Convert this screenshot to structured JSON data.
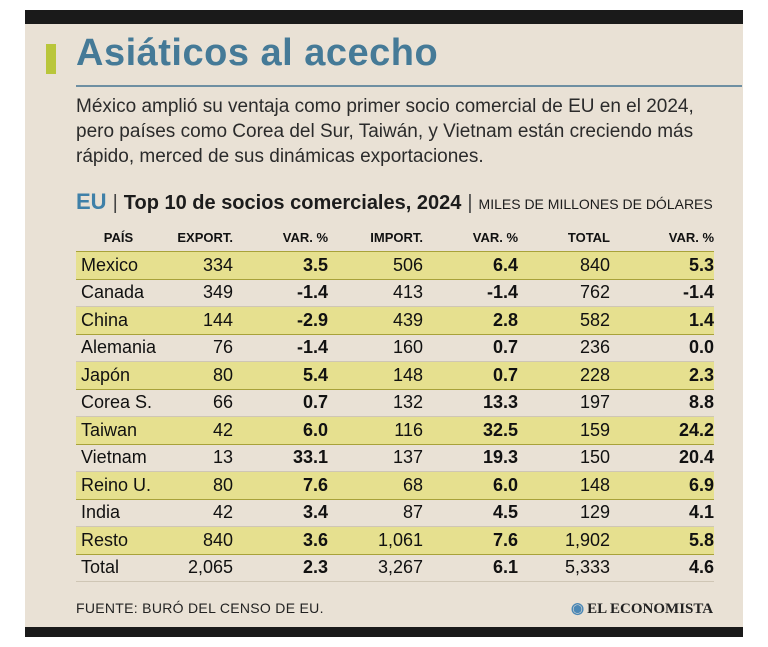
{
  "title": "Asiáticos al acecho",
  "description": "México amplió su ventaja como primer socio comercial de EU en el 2024, pero países como Corea del Sur, Taiwán, y Vietnam están creciendo más rápido, merced de sus dinámicas exportaciones.",
  "subheading": {
    "region": "EU",
    "separator": "|",
    "title": "Top 10 de socios comerciales, 2024",
    "units": "MILES DE MILLONES DE DÓLARES"
  },
  "table": {
    "headers": [
      "PAÍS",
      "EXPORT.",
      "VAR. %",
      "IMPORT.",
      "VAR. %",
      "TOTAL",
      "VAR. %"
    ],
    "rows": [
      [
        "Mexico",
        "334",
        "3.5",
        "506",
        "6.4",
        "840",
        "5.3"
      ],
      [
        "Canada",
        "349",
        "-1.4",
        "413",
        "-1.4",
        "762",
        "-1.4"
      ],
      [
        "China",
        "144",
        "-2.9",
        "439",
        "2.8",
        "582",
        "1.4"
      ],
      [
        "Alemania",
        "76",
        "-1.4",
        "160",
        "0.7",
        "236",
        "0.0"
      ],
      [
        "Japón",
        "80",
        "5.4",
        "148",
        "0.7",
        "228",
        "2.3"
      ],
      [
        "Corea S.",
        "66",
        "0.7",
        "132",
        "13.3",
        "197",
        "8.8"
      ],
      [
        "Taiwan",
        "42",
        "6.0",
        "116",
        "32.5",
        "159",
        "24.2"
      ],
      [
        "Vietnam",
        "13",
        "33.1",
        "137",
        "19.3",
        "150",
        "20.4"
      ],
      [
        "Reino U.",
        "80",
        "7.6",
        "68",
        "6.0",
        "148",
        "6.9"
      ],
      [
        "India",
        "42",
        "3.4",
        "87",
        "4.5",
        "129",
        "4.1"
      ],
      [
        "Resto",
        "840",
        "3.6",
        "1,061",
        "7.6",
        "1,902",
        "5.8"
      ],
      [
        "Total",
        "2,065",
        "2.3",
        "3,267",
        "6.1",
        "5,333",
        "4.6"
      ]
    ]
  },
  "source": "FUENTE: BURÓ DEL CENSO DE EU.",
  "logo": "EL ECONOMISTA",
  "colors": {
    "title": "#457a97",
    "accent": "#b9c63b",
    "highlight_row": "#e6e08f",
    "panel_bg": "#e9e1d5"
  }
}
